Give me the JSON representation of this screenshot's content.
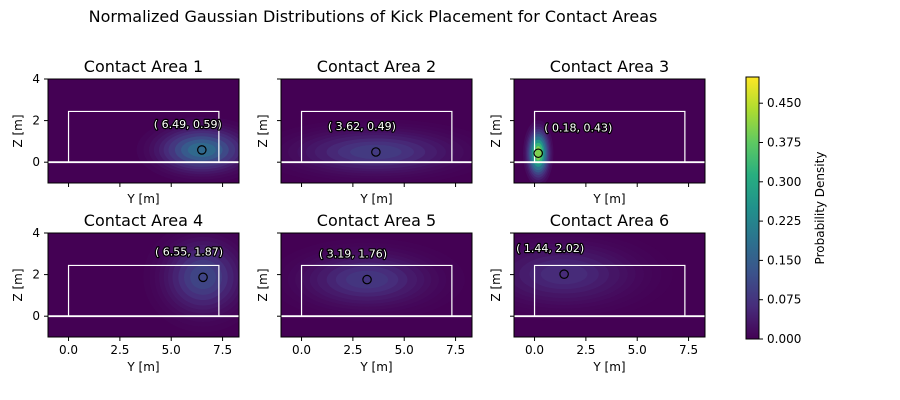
{
  "title": "Normalized Gaussian Distributions of Kick Placement for Contact Areas",
  "colorbar": {
    "label": "Probability Density",
    "ticks": [
      "0.000",
      "0.075",
      "0.150",
      "0.225",
      "0.300",
      "0.375",
      "0.450"
    ],
    "tick_values": [
      0,
      0.075,
      0.15,
      0.225,
      0.3,
      0.375,
      0.45
    ],
    "range": [
      0,
      0.5
    ],
    "colormap": "viridis"
  },
  "chart_data": {
    "type": "heatmap",
    "title": "Normalized Gaussian Distributions of Kick Placement for Contact Areas",
    "xlabel": "Y [m]",
    "ylabel": "Z [m]",
    "xlim": [
      -1,
      8.3
    ],
    "ylim": [
      -1,
      4
    ],
    "xticks": [
      0,
      2.5,
      5,
      7.5
    ],
    "xtick_labels": [
      "0.0",
      "2.5",
      "5.0",
      "7.5"
    ],
    "yticks": [
      0,
      2,
      4
    ],
    "ytick_labels": [
      "0",
      "2",
      "4"
    ],
    "goal": {
      "y": [
        0,
        7.32
      ],
      "z": [
        0,
        2.44
      ]
    },
    "panels": [
      {
        "title": "Contact Area 1",
        "mean_y": 6.49,
        "mean_z": 0.59,
        "label": "( 6.49,  0.59)",
        "sigma_y": 1.2,
        "sigma_z": 0.6,
        "peak": 0.2
      },
      {
        "title": "Contact Area 2",
        "mean_y": 3.62,
        "mean_z": 0.49,
        "label": "( 3.62,  0.49)",
        "sigma_y": 2.2,
        "sigma_z": 0.6,
        "peak": 0.1
      },
      {
        "title": "Contact Area 3",
        "mean_y": 0.18,
        "mean_z": 0.43,
        "label": "( 0.18,  0.43)",
        "sigma_y": 0.28,
        "sigma_z": 0.6,
        "peak": 0.47
      },
      {
        "title": "Contact Area 4",
        "mean_y": 6.55,
        "mean_z": 1.87,
        "label": "( 6.55,  1.87)",
        "sigma_y": 1.1,
        "sigma_z": 1.0,
        "peak": 0.12
      },
      {
        "title": "Contact Area 5",
        "mean_y": 3.19,
        "mean_z": 1.76,
        "label": "( 3.19,  1.76)",
        "sigma_y": 1.8,
        "sigma_z": 0.75,
        "peak": 0.09
      },
      {
        "title": "Contact Area 6",
        "mean_y": 1.44,
        "mean_z": 2.02,
        "label": "( 1.44,  2.02)",
        "sigma_y": 2.0,
        "sigma_z": 0.85,
        "peak": 0.07
      }
    ]
  }
}
